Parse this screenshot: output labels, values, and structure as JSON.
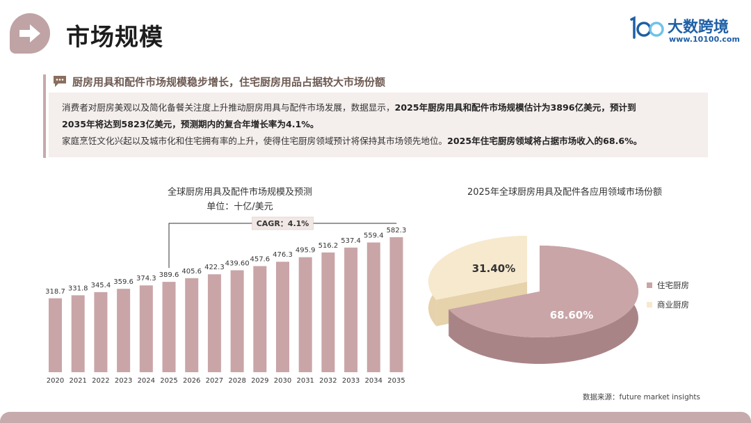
{
  "header": {
    "title": "市场规模",
    "logo_name": "大数跨境",
    "logo_url": "www.10100.com",
    "logo_mark": "100"
  },
  "summary": {
    "heading": "厨房用具和配件市场规模稳步增长，住宅厨房用品占据较大市场份额",
    "p1_a": "消费者对厨房美观以及简化备餐关注度上升推动厨房用具与配件市场发展，数据显示，",
    "p1_b": "2025年厨房用具和配件市场规模估计为3896亿美元，预计到",
    "p1_c": "2035年将达到5823亿美元，预测期内的复合年增长率为4.1%。",
    "p2_a": "家庭烹饪文化兴起以及城市化和住宅拥有率的上升，使得住宅厨房领域预计将保持其市场领先地位。",
    "p2_b": "2025年住宅厨房领域将占据市场收入的68.6%。"
  },
  "bar_chart": {
    "title": "全球厨房用具及配件市场规模及预测",
    "subtitle": "单位：十亿/美元",
    "cagr_label": "CAGR：4.1%"
  },
  "pie_chart": {
    "title": "2025年全球厨房用具及配件各应用领域市场份额"
  },
  "source": "数据来源：future market insights",
  "colors": {
    "bar": "#c9a5a8",
    "residential": "#c9a5a8",
    "commercial": "#f7e9cd",
    "accent": "#c7aaac"
  },
  "chart_data": [
    {
      "type": "bar",
      "title": "全球厨房用具及配件市场规模及预测",
      "subtitle": "单位：十亿/美元",
      "categories": [
        "2020",
        "2021",
        "2022",
        "2023",
        "2024",
        "2025",
        "2026",
        "2027",
        "2028",
        "2029",
        "2030",
        "2031",
        "2032",
        "2033",
        "2034",
        "2035"
      ],
      "values": [
        318.7,
        331.8,
        345.4,
        359.6,
        374.3,
        389.6,
        405.6,
        422.3,
        439.6,
        457.6,
        476.3,
        495.9,
        516.2,
        537.4,
        559.4,
        582.3
      ],
      "value_labels": [
        "318.7",
        "331.8",
        "345.4",
        "359.6",
        "374.3",
        "389.6",
        "405.6",
        "422.3",
        "439.60",
        "457.6",
        "476.3",
        "495.9",
        "516.2",
        "537.4",
        "559.4",
        "582.3"
      ],
      "annotation": "CAGR：4.1%",
      "annotation_span": [
        "2025",
        "2035"
      ],
      "ylim": [
        0,
        600
      ],
      "grid": false,
      "legend": "none"
    },
    {
      "type": "pie",
      "title": "2025年全球厨房用具及配件各应用领域市场份额",
      "labels": [
        "住宅厨房",
        "商业厨房"
      ],
      "values": [
        68.6,
        31.4
      ],
      "value_labels": [
        "68.60%",
        "31.40%"
      ],
      "style": "3d",
      "legend": "right"
    }
  ]
}
